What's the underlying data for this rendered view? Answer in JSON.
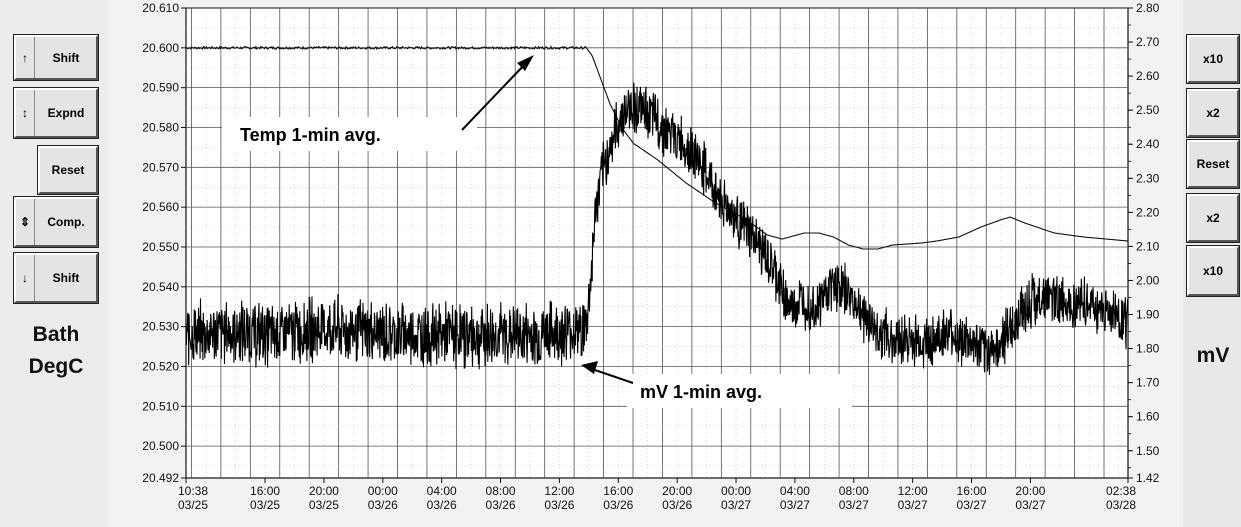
{
  "left_panel": {
    "buttons": [
      {
        "label": "Shift",
        "arrow": "up-arrow-icon",
        "glyph": "↑"
      },
      {
        "label": "Expnd",
        "arrow": "expand-arrows-icon",
        "glyph": "↕"
      },
      {
        "label": "Reset",
        "arrow": "",
        "glyph": ""
      },
      {
        "label": "Comp.",
        "arrow": "compress-arrows-icon",
        "glyph": "⇕"
      },
      {
        "label": "Shift",
        "arrow": "down-arrow-icon",
        "glyph": "↓"
      }
    ],
    "axis_label_line1": "Bath",
    "axis_label_line2": "DegC"
  },
  "right_panel": {
    "buttons": [
      {
        "label": "x10"
      },
      {
        "label": "x2"
      },
      {
        "label": "Reset"
      },
      {
        "label": "x2"
      },
      {
        "label": "x10"
      }
    ],
    "axis_label": "mV"
  },
  "chart_data": {
    "type": "line",
    "grid": true,
    "y_left": {
      "label": "Bath DegC",
      "range": [
        20.492,
        20.61
      ],
      "ticks": [
        "20.610",
        "20.600",
        "20.590",
        "20.580",
        "20.570",
        "20.560",
        "20.550",
        "20.540",
        "20.530",
        "20.520",
        "20.510",
        "20.500",
        "20.492"
      ]
    },
    "y_right": {
      "label": "mV",
      "range": [
        1.42,
        2.8
      ],
      "ticks": [
        "2.80",
        "2.70",
        "2.60",
        "2.50",
        "2.40",
        "2.30",
        "2.20",
        "2.10",
        "2.00",
        "1.90",
        "1.80",
        "1.70",
        "1.60",
        "1.50",
        "1.42"
      ]
    },
    "x_axis": {
      "range_hours": [
        0,
        64
      ],
      "ticks": [
        {
          "t": 0,
          "time": "10:38",
          "date": "03/25"
        },
        {
          "t": 5.37,
          "time": "16:00",
          "date": "03/25"
        },
        {
          "t": 9.37,
          "time": "20:00",
          "date": "03/25"
        },
        {
          "t": 13.37,
          "time": "00:00",
          "date": "03/26"
        },
        {
          "t": 17.37,
          "time": "04:00",
          "date": "03/26"
        },
        {
          "t": 21.37,
          "time": "08:00",
          "date": "03/26"
        },
        {
          "t": 25.37,
          "time": "12:00",
          "date": "03/26"
        },
        {
          "t": 29.37,
          "time": "16:00",
          "date": "03/26"
        },
        {
          "t": 33.37,
          "time": "20:00",
          "date": "03/26"
        },
        {
          "t": 37.37,
          "time": "00:00",
          "date": "03/27"
        },
        {
          "t": 41.37,
          "time": "04:00",
          "date": "03/27"
        },
        {
          "t": 45.37,
          "time": "08:00",
          "date": "03/27"
        },
        {
          "t": 49.37,
          "time": "12:00",
          "date": "03/27"
        },
        {
          "t": 53.37,
          "time": "16:00",
          "date": "03/27"
        },
        {
          "t": 57.37,
          "time": "20:00",
          "date": "03/27"
        },
        {
          "t": 64,
          "time": "02:38",
          "date": "03/28"
        }
      ]
    },
    "series": [
      {
        "name": "Temp 1-min avg.",
        "axis": "left",
        "points": [
          [
            0,
            20.6
          ],
          [
            27.2,
            20.6
          ],
          [
            27.6,
            20.598
          ],
          [
            28.2,
            20.592
          ],
          [
            28.8,
            20.586
          ],
          [
            29.6,
            20.58
          ],
          [
            30.4,
            20.576
          ],
          [
            32,
            20.572
          ],
          [
            34,
            20.566
          ],
          [
            36,
            20.561
          ],
          [
            38,
            20.557
          ],
          [
            39.5,
            20.553
          ],
          [
            40.5,
            20.552
          ],
          [
            42,
            20.5535
          ],
          [
            43,
            20.5535
          ],
          [
            44,
            20.5525
          ],
          [
            45,
            20.5505
          ],
          [
            46,
            20.5495
          ],
          [
            47,
            20.5495
          ],
          [
            48,
            20.5505
          ],
          [
            50,
            20.551
          ],
          [
            51,
            20.5515
          ],
          [
            52.5,
            20.5525
          ],
          [
            54,
            20.555
          ],
          [
            55.5,
            20.557
          ],
          [
            56,
            20.5575
          ],
          [
            57,
            20.556
          ],
          [
            59,
            20.5535
          ],
          [
            61,
            20.5525
          ],
          [
            64,
            20.5515
          ]
        ]
      },
      {
        "name": "mV 1-min avg.",
        "axis": "right",
        "points": [
          [
            0,
            1.84
          ],
          [
            3,
            1.85
          ],
          [
            6,
            1.84
          ],
          [
            9,
            1.86
          ],
          [
            12,
            1.85
          ],
          [
            15,
            1.84
          ],
          [
            18,
            1.84
          ],
          [
            21,
            1.84
          ],
          [
            24,
            1.84
          ],
          [
            27.2,
            1.86
          ],
          [
            27.5,
            2.0
          ],
          [
            27.8,
            2.2
          ],
          [
            28.2,
            2.3
          ],
          [
            29,
            2.42
          ],
          [
            29.6,
            2.48
          ],
          [
            30.3,
            2.52
          ],
          [
            31,
            2.5
          ],
          [
            32,
            2.47
          ],
          [
            33,
            2.42
          ],
          [
            34,
            2.4
          ],
          [
            35,
            2.34
          ],
          [
            36,
            2.26
          ],
          [
            37,
            2.2
          ],
          [
            38,
            2.15
          ],
          [
            39,
            2.1
          ],
          [
            40,
            2.02
          ],
          [
            41,
            1.92
          ],
          [
            42,
            1.94
          ],
          [
            43,
            1.93
          ],
          [
            44,
            2.0
          ],
          [
            45,
            1.96
          ],
          [
            46,
            1.9
          ],
          [
            47,
            1.85
          ],
          [
            48,
            1.83
          ],
          [
            50,
            1.82
          ],
          [
            52,
            1.84
          ],
          [
            53,
            1.82
          ],
          [
            54,
            1.79
          ],
          [
            55,
            1.8
          ],
          [
            56,
            1.85
          ],
          [
            57,
            1.93
          ],
          [
            58,
            1.95
          ],
          [
            60,
            1.94
          ],
          [
            62,
            1.92
          ],
          [
            64,
            1.88
          ]
        ]
      }
    ],
    "annotations": [
      {
        "text": "Temp 1-min avg.",
        "series": "Temp 1-min avg."
      },
      {
        "text": "mV 1-min avg.",
        "series": "mV 1-min avg."
      }
    ]
  }
}
